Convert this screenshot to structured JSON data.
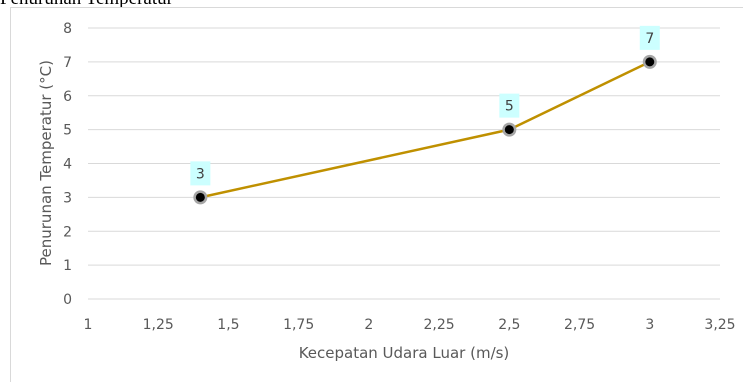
{
  "page": {
    "title_fragment": "Penurunan Temperatur"
  },
  "colors": {
    "line": "#bf9000",
    "grid": "#d9d9d9",
    "axis_text": "#595959",
    "label_bg": "#ccffff",
    "marker_fill": "#000000",
    "marker_ring": "#a6a6a6"
  },
  "chart_data": {
    "type": "line",
    "title": "",
    "xlabel": "Kecepatan Udara Luar (m/s)",
    "ylabel": "Penurunan Temperatur (°C)",
    "xlim": [
      1,
      3.25
    ],
    "ylim": [
      0,
      8
    ],
    "x_ticks": [
      1,
      1.25,
      1.5,
      1.75,
      2,
      2.25,
      2.5,
      2.75,
      3,
      3.25
    ],
    "x_tick_labels": [
      "1",
      "1,25",
      "1,5",
      "1,75",
      "2",
      "2,25",
      "2,5",
      "2,75",
      "3",
      "3,25"
    ],
    "y_ticks": [
      0,
      1,
      2,
      3,
      4,
      5,
      6,
      7,
      8
    ],
    "y_tick_labels": [
      "0",
      "1",
      "2",
      "3",
      "4",
      "5",
      "6",
      "7",
      "8"
    ],
    "grid": "horizontal",
    "legend": "none",
    "series": [
      {
        "x": [
          1.4,
          2.5,
          3
        ],
        "y": [
          3,
          5,
          7
        ],
        "data_labels": [
          "3",
          "5",
          "7"
        ]
      }
    ]
  }
}
